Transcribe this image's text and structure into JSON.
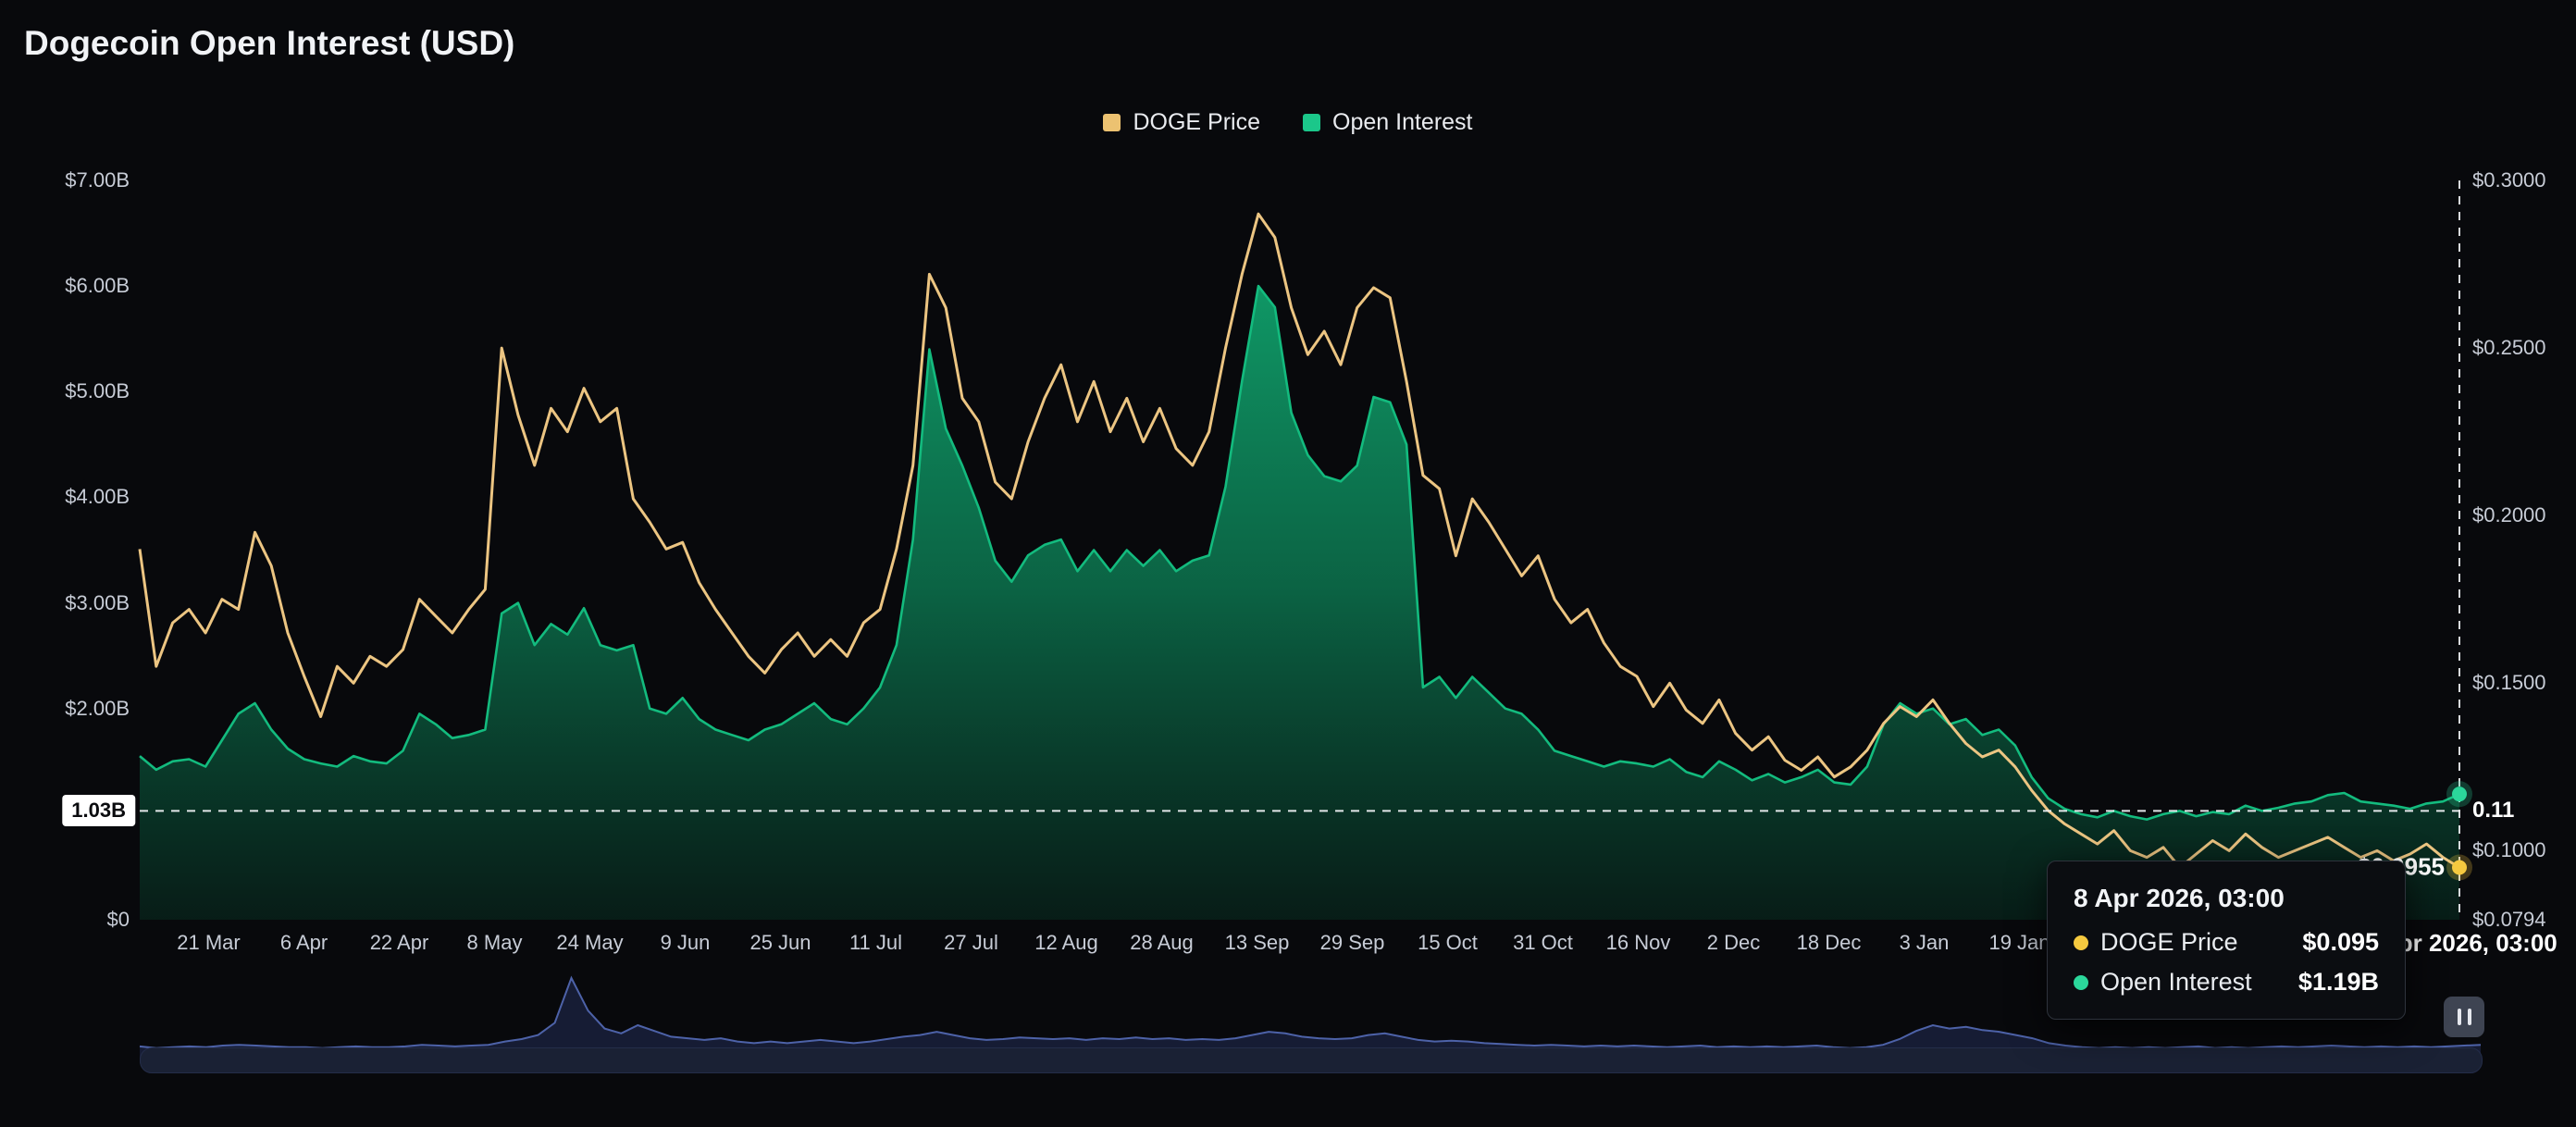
{
  "page": {
    "title": "Dogecoin Open Interest (USD)"
  },
  "legend": {
    "items": [
      {
        "label": "DOGE Price",
        "color": "#ecc271"
      },
      {
        "label": "Open Interest",
        "color": "#1bc78a"
      }
    ]
  },
  "markers": {
    "oi_line_label": "1.03B",
    "oi_line_value": 1.03,
    "price_line_label": "0.11",
    "price_partial_label": "$0.0955",
    "crosshair_date": "8 Apr 2026, 03:00",
    "last_price": 0.095,
    "last_oi_b": 1.19
  },
  "tooltip": {
    "title": "8 Apr 2026, 03:00",
    "rows": [
      {
        "label": "DOGE Price",
        "value": "$0.095",
        "color": "#f5c93f"
      },
      {
        "label": "Open Interest",
        "value": "$1.19B",
        "color": "#2bd79b"
      }
    ]
  },
  "navigator": {
    "values": [
      0.16,
      0.14,
      0.15,
      0.16,
      0.15,
      0.17,
      0.18,
      0.17,
      0.16,
      0.15,
      0.15,
      0.14,
      0.15,
      0.16,
      0.15,
      0.15,
      0.16,
      0.18,
      0.17,
      0.16,
      0.17,
      0.18,
      0.22,
      0.25,
      0.3,
      0.45,
      1.0,
      0.6,
      0.38,
      0.32,
      0.42,
      0.35,
      0.28,
      0.26,
      0.24,
      0.26,
      0.22,
      0.2,
      0.22,
      0.2,
      0.22,
      0.24,
      0.22,
      0.2,
      0.22,
      0.25,
      0.28,
      0.3,
      0.34,
      0.3,
      0.26,
      0.24,
      0.25,
      0.27,
      0.26,
      0.25,
      0.26,
      0.24,
      0.26,
      0.25,
      0.27,
      0.25,
      0.26,
      0.24,
      0.25,
      0.24,
      0.26,
      0.3,
      0.34,
      0.32,
      0.28,
      0.26,
      0.25,
      0.26,
      0.3,
      0.32,
      0.28,
      0.24,
      0.22,
      0.23,
      0.22,
      0.2,
      0.19,
      0.18,
      0.17,
      0.18,
      0.17,
      0.16,
      0.17,
      0.16,
      0.17,
      0.16,
      0.15,
      0.16,
      0.17,
      0.15,
      0.16,
      0.15,
      0.16,
      0.15,
      0.16,
      0.17,
      0.15,
      0.14,
      0.15,
      0.18,
      0.25,
      0.35,
      0.42,
      0.38,
      0.4,
      0.36,
      0.34,
      0.3,
      0.26,
      0.2,
      0.17,
      0.15,
      0.14,
      0.15,
      0.14,
      0.15,
      0.14,
      0.15,
      0.16,
      0.14,
      0.15,
      0.14,
      0.15,
      0.16,
      0.15,
      0.16,
      0.17,
      0.16,
      0.15,
      0.16,
      0.15,
      0.16,
      0.15,
      0.16,
      0.17,
      0.18
    ]
  },
  "chart_data": {
    "type": "area",
    "title": "Dogecoin Open Interest (USD)",
    "legend_position": "top-center",
    "grid": false,
    "left_axis": {
      "min": 0,
      "max": 7,
      "unit": "$B",
      "ticks": [
        {
          "label": "$7.00B",
          "value": 7
        },
        {
          "label": "$6.00B",
          "value": 6
        },
        {
          "label": "$5.00B",
          "value": 5
        },
        {
          "label": "$4.00B",
          "value": 4
        },
        {
          "label": "$3.00B",
          "value": 3
        },
        {
          "label": "$2.00B",
          "value": 2
        },
        {
          "label": "$0",
          "value": 0
        }
      ]
    },
    "right_axis": {
      "min": 0.0794,
      "max": 0.3,
      "unit": "$",
      "ticks": [
        {
          "label": "$0.3000",
          "value": 0.3
        },
        {
          "label": "$0.2500",
          "value": 0.25
        },
        {
          "label": "$0.2000",
          "value": 0.2
        },
        {
          "label": "$0.1500",
          "value": 0.15
        },
        {
          "label": "$0.1000",
          "value": 0.1
        },
        {
          "label": "$0.0794",
          "value": 0.0794
        }
      ]
    },
    "x_tick_labels": [
      "21 Mar",
      "6 Apr",
      "22 Apr",
      "8 May",
      "24 May",
      "9 Jun",
      "25 Jun",
      "11 Jul",
      "27 Jul",
      "12 Aug",
      "28 Aug",
      "13 Sep",
      "29 Sep",
      "15 Oct",
      "31 Oct",
      "16 Nov",
      "2 Dec",
      "18 Dec",
      "3 Jan",
      "19 Jan"
    ],
    "series": [
      {
        "name": "DOGE Price",
        "type": "line",
        "axis": "right",
        "color": "#ecc582",
        "values": [
          0.19,
          0.155,
          0.168,
          0.172,
          0.165,
          0.175,
          0.172,
          0.195,
          0.185,
          0.165,
          0.152,
          0.14,
          0.155,
          0.15,
          0.158,
          0.155,
          0.16,
          0.175,
          0.17,
          0.165,
          0.172,
          0.178,
          0.25,
          0.23,
          0.215,
          0.232,
          0.225,
          0.238,
          0.228,
          0.232,
          0.205,
          0.198,
          0.19,
          0.192,
          0.18,
          0.172,
          0.165,
          0.158,
          0.153,
          0.16,
          0.165,
          0.158,
          0.163,
          0.158,
          0.168,
          0.172,
          0.19,
          0.215,
          0.272,
          0.262,
          0.235,
          0.228,
          0.21,
          0.205,
          0.222,
          0.235,
          0.245,
          0.228,
          0.24,
          0.225,
          0.235,
          0.222,
          0.232,
          0.22,
          0.215,
          0.225,
          0.25,
          0.272,
          0.29,
          0.283,
          0.262,
          0.248,
          0.255,
          0.245,
          0.262,
          0.268,
          0.265,
          0.24,
          0.212,
          0.208,
          0.188,
          0.205,
          0.198,
          0.19,
          0.182,
          0.188,
          0.175,
          0.168,
          0.172,
          0.162,
          0.155,
          0.152,
          0.143,
          0.15,
          0.142,
          0.138,
          0.145,
          0.135,
          0.13,
          0.134,
          0.127,
          0.124,
          0.128,
          0.122,
          0.125,
          0.13,
          0.138,
          0.143,
          0.14,
          0.145,
          0.138,
          0.132,
          0.128,
          0.13,
          0.125,
          0.118,
          0.112,
          0.108,
          0.105,
          0.102,
          0.106,
          0.1,
          0.098,
          0.101,
          0.095,
          0.099,
          0.103,
          0.1,
          0.105,
          0.101,
          0.098,
          0.1,
          0.102,
          0.104,
          0.101,
          0.098,
          0.1,
          0.097,
          0.099,
          0.102,
          0.098,
          0.095
        ]
      },
      {
        "name": "Open Interest",
        "type": "area",
        "axis": "left",
        "color": "#13bb7e",
        "fill_top": "#11b377",
        "fill_bottom": "#07271d",
        "values": [
          1.55,
          1.42,
          1.5,
          1.52,
          1.45,
          1.7,
          1.95,
          2.05,
          1.8,
          1.62,
          1.52,
          1.48,
          1.45,
          1.55,
          1.5,
          1.48,
          1.6,
          1.95,
          1.85,
          1.72,
          1.75,
          1.8,
          2.9,
          3.0,
          2.6,
          2.8,
          2.7,
          2.95,
          2.6,
          2.55,
          2.6,
          2.0,
          1.95,
          2.1,
          1.9,
          1.8,
          1.75,
          1.7,
          1.8,
          1.85,
          1.95,
          2.05,
          1.9,
          1.85,
          2.0,
          2.2,
          2.6,
          3.6,
          5.4,
          4.65,
          4.3,
          3.9,
          3.4,
          3.2,
          3.45,
          3.55,
          3.6,
          3.3,
          3.5,
          3.3,
          3.5,
          3.35,
          3.5,
          3.3,
          3.4,
          3.45,
          4.1,
          5.1,
          6.0,
          5.8,
          4.8,
          4.4,
          4.2,
          4.15,
          4.3,
          4.95,
          4.9,
          4.5,
          2.2,
          2.3,
          2.1,
          2.3,
          2.15,
          2.0,
          1.95,
          1.8,
          1.6,
          1.55,
          1.5,
          1.45,
          1.5,
          1.48,
          1.45,
          1.52,
          1.4,
          1.35,
          1.5,
          1.42,
          1.32,
          1.38,
          1.3,
          1.35,
          1.42,
          1.3,
          1.28,
          1.45,
          1.85,
          2.05,
          1.95,
          2.0,
          1.85,
          1.9,
          1.75,
          1.8,
          1.65,
          1.35,
          1.15,
          1.05,
          1.0,
          0.97,
          1.03,
          0.98,
          0.95,
          1.0,
          1.03,
          0.98,
          1.02,
          1.0,
          1.08,
          1.03,
          1.06,
          1.1,
          1.12,
          1.18,
          1.2,
          1.12,
          1.1,
          1.08,
          1.05,
          1.1,
          1.12,
          1.19
        ]
      }
    ],
    "last_point": {
      "date": "8 Apr 2026, 03:00",
      "doge_price": 0.095,
      "open_interest_b": 1.19
    }
  }
}
